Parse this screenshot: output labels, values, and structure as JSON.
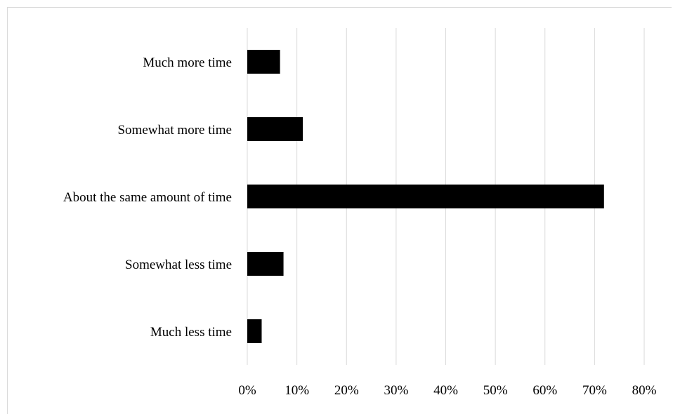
{
  "chart_data": {
    "type": "bar",
    "orientation": "horizontal",
    "categories": [
      "Much more time",
      "Somewhat more time",
      "About the same amount of time",
      "Somewhat less time",
      "Much less time"
    ],
    "values": [
      6.6,
      11.2,
      71.9,
      7.3,
      2.9
    ],
    "value_unit": "%",
    "xlim": [
      0,
      80
    ],
    "xticks": [
      0,
      10,
      20,
      30,
      40,
      50,
      60,
      70,
      80
    ],
    "tick_labels": [
      "0%",
      "10%",
      "20%",
      "30%",
      "40%",
      "50%",
      "60%",
      "70%",
      "80%"
    ],
    "title": "",
    "xlabel": "",
    "ylabel": "",
    "grid": "vertical",
    "legend": "none",
    "bar_color": "#000000",
    "grid_color": "#d9d9d9"
  }
}
